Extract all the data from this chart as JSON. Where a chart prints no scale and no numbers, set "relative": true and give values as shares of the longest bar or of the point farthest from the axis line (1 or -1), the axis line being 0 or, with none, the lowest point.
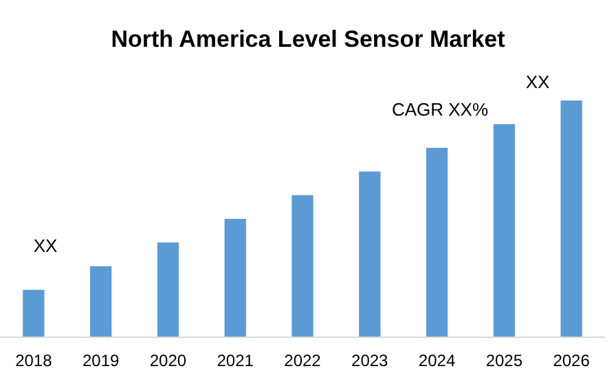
{
  "chart_data": {
    "type": "bar",
    "title": "North America Level Sensor Market",
    "relative": true,
    "categories": [
      "2018",
      "2019",
      "2020",
      "2021",
      "2022",
      "2023",
      "2024",
      "2025",
      "2026"
    ],
    "values": [
      0.2,
      0.3,
      0.4,
      0.5,
      0.6,
      0.7,
      0.8,
      0.9,
      1
    ],
    "color": "#5b9bd5",
    "annotations": [
      "XX",
      "CAGR XX%",
      "XX"
    ]
  }
}
